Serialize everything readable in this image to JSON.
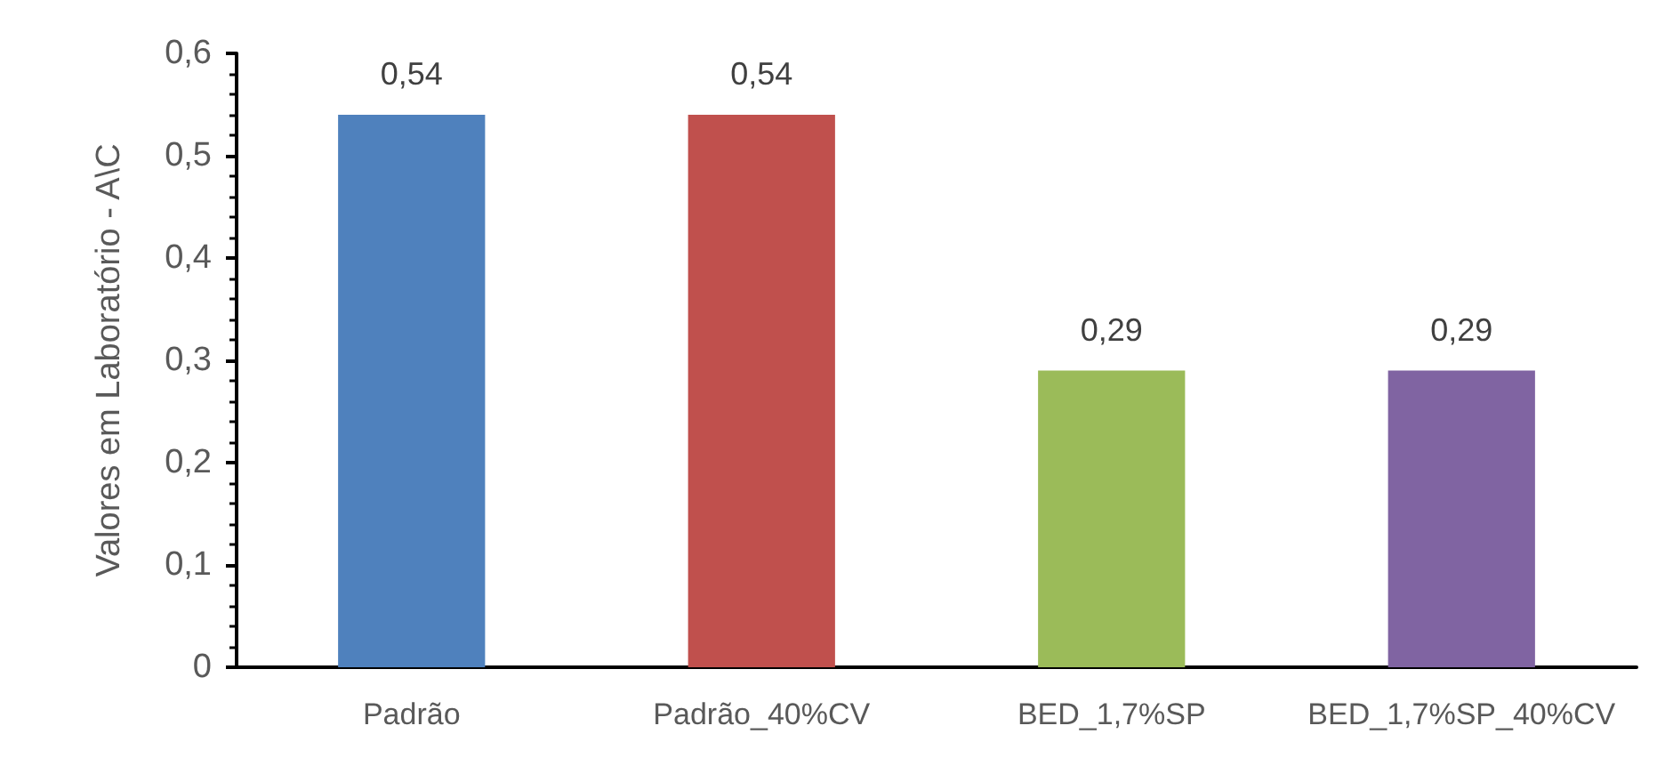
{
  "chart_data": {
    "type": "bar",
    "ylabel": "Valores em Laboratório - A\\C",
    "categories": [
      "Padrão",
      "Padrão_40%CV",
      "BED_1,7%SP",
      "BED_1,7%SP_40%CV"
    ],
    "values": [
      0.54,
      0.54,
      0.29,
      0.29
    ],
    "colors": [
      "#4f81bd",
      "#c0504d",
      "#9bbb59",
      "#8064a2"
    ],
    "value_labels": [
      "0,54",
      "0,54",
      "0,29",
      "0,29"
    ],
    "ylim": [
      0,
      0.6
    ],
    "yticks": [
      {
        "value": 0,
        "label": "0"
      },
      {
        "value": 0.1,
        "label": "0,1"
      },
      {
        "value": 0.2,
        "label": "0,2"
      },
      {
        "value": 0.3,
        "label": "0,3"
      },
      {
        "value": 0.4,
        "label": "0,4"
      },
      {
        "value": 0.5,
        "label": "0,5"
      },
      {
        "value": 0.6,
        "label": "0,6"
      }
    ],
    "grid": false
  }
}
